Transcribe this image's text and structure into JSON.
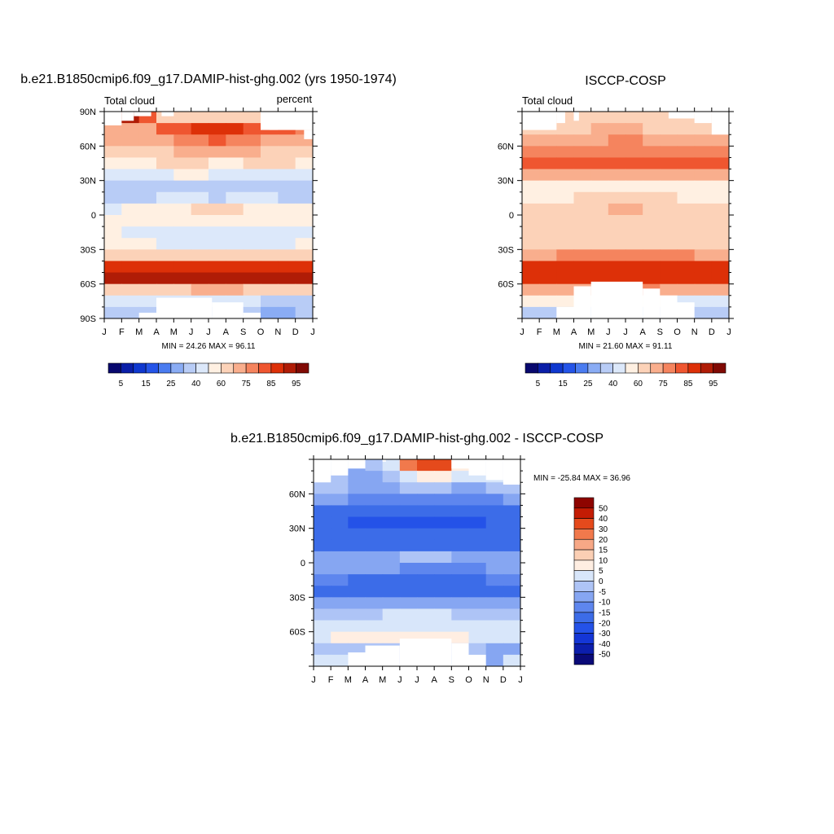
{
  "panels": {
    "model": {
      "title": "b.e21.B1850cmip6.f09_g17.DAMIP-hist-ghg.002 (yrs 1950-1974)",
      "left_label": "Total cloud",
      "right_label": "percent",
      "stats": "MIN =  24.26 MAX =  96.11"
    },
    "obs": {
      "title": "ISCCP-COSP",
      "left_label": "Total cloud",
      "stats": "MIN =  21.60 MAX =  91.11"
    },
    "diff": {
      "title": "b.e21.B1850cmip6.f09_g17.DAMIP-hist-ghg.002 - ISCCP-COSP",
      "stats": "MIN = -25.84 MAX =  36.96"
    }
  },
  "colors": {
    "abs_palette": [
      "#08086e",
      "#0a1ea8",
      "#0f38cf",
      "#2454e8",
      "#4a7cf0",
      "#8aacf4",
      "#b8ccf6",
      "#dce8fa",
      "#fff0e2",
      "#fcd2b8",
      "#f9ae8d",
      "#f5845e",
      "#ef5630",
      "#dd3008",
      "#b01c06",
      "#800a04"
    ],
    "diff_palette": [
      "#0a0a78",
      "#0c1eac",
      "#1436d6",
      "#2452e8",
      "#3c6ce8",
      "#5e86ee",
      "#86a6f2",
      "#aec4f6",
      "#d8e6fa",
      "#ffeee2",
      "#fbcfb4",
      "#f7a886",
      "#f1794c",
      "#e54a1c",
      "#c41c04",
      "#8e0400"
    ]
  },
  "chart_data": [
    {
      "type": "heatmap",
      "title": "b.e21.B1850cmip6.f09_g17.DAMIP-hist-ghg.002 (yrs 1950-1974)",
      "x_ticklabels": [
        "J",
        "F",
        "M",
        "A",
        "M",
        "J",
        "J",
        "A",
        "S",
        "O",
        "N",
        "D",
        "J"
      ],
      "y_ticklabels": [
        "90N",
        "60N",
        "30N",
        "0",
        "30S",
        "60S",
        "90S"
      ],
      "y_range": [
        -90,
        90
      ],
      "colorbar_ticklabels": [
        "5",
        "15",
        "25",
        "40",
        "60",
        "75",
        "85",
        "95"
      ],
      "colorbar_levels": [
        5,
        10,
        15,
        20,
        25,
        30,
        40,
        50,
        60,
        70,
        75,
        80,
        85,
        90,
        95
      ],
      "colorbar_placement": "bottom",
      "min": 24.26,
      "max": 96.11,
      "units": "percent",
      "latitudes": [
        85,
        75,
        65,
        55,
        45,
        35,
        25,
        15,
        5,
        -5,
        -15,
        -25,
        -35,
        -45,
        -55,
        -65,
        -75,
        -85
      ],
      "values": [
        [
          92,
          90,
          84,
          64,
          60,
          60,
          60,
          60,
          60,
          60,
          60,
          60
        ],
        [
          72,
          72,
          74,
          80,
          84,
          86,
          88,
          86,
          84,
          80,
          80,
          76
        ],
        [
          70,
          70,
          72,
          74,
          76,
          78,
          80,
          78,
          76,
          74,
          74,
          72
        ],
        [
          65,
          65,
          66,
          68,
          70,
          72,
          72,
          70,
          70,
          68,
          66,
          64
        ],
        [
          58,
          58,
          58,
          60,
          62,
          60,
          58,
          58,
          60,
          60,
          60,
          58
        ],
        [
          44,
          44,
          46,
          48,
          50,
          50,
          48,
          48,
          46,
          46,
          44,
          44
        ],
        [
          34,
          32,
          34,
          36,
          38,
          36,
          34,
          34,
          36,
          36,
          36,
          34
        ],
        [
          34,
          34,
          38,
          40,
          42,
          40,
          38,
          40,
          42,
          40,
          38,
          36
        ],
        [
          48,
          50,
          52,
          54,
          56,
          60,
          62,
          62,
          58,
          56,
          52,
          50
        ],
        [
          58,
          58,
          56,
          54,
          54,
          50,
          50,
          50,
          52,
          54,
          56,
          58
        ],
        [
          50,
          48,
          46,
          44,
          42,
          40,
          40,
          40,
          42,
          44,
          46,
          48
        ],
        [
          50,
          50,
          50,
          48,
          46,
          44,
          44,
          44,
          46,
          48,
          48,
          50
        ],
        [
          62,
          62,
          62,
          64,
          64,
          66,
          66,
          64,
          64,
          62,
          62,
          62
        ],
        [
          86,
          86,
          86,
          88,
          88,
          88,
          88,
          88,
          88,
          88,
          86,
          86
        ],
        [
          90,
          90,
          90,
          92,
          92,
          93,
          93,
          92,
          92,
          90,
          90,
          90
        ],
        [
          62,
          64,
          66,
          66,
          68,
          70,
          70,
          70,
          68,
          66,
          62,
          62
        ],
        [
          40,
          40,
          42,
          44,
          44,
          42,
          42,
          42,
          40,
          38,
          34,
          32
        ],
        [
          38,
          36,
          34,
          34,
          34,
          34,
          34,
          34,
          30,
          28,
          26,
          32
        ]
      ],
      "missing_note": "white areas are missing data"
    },
    {
      "type": "heatmap",
      "title": "ISCCP-COSP",
      "x_ticklabels": [
        "J",
        "F",
        "M",
        "A",
        "M",
        "J",
        "J",
        "A",
        "S",
        "O",
        "N",
        "D",
        "J"
      ],
      "y_ticklabels": [
        "60N",
        "30N",
        "0",
        "30S",
        "60S"
      ],
      "y_range": [
        -90,
        90
      ],
      "colorbar_ticklabels": [
        "5",
        "15",
        "25",
        "40",
        "60",
        "75",
        "85",
        "95"
      ],
      "colorbar_levels": [
        5,
        10,
        15,
        20,
        25,
        30,
        40,
        50,
        60,
        70,
        75,
        80,
        85,
        90,
        95
      ],
      "colorbar_placement": "bottom",
      "min": 21.6,
      "max": 91.11,
      "latitudes": [
        85,
        75,
        65,
        55,
        45,
        35,
        25,
        15,
        5,
        -5,
        -15,
        -25,
        -35,
        -45,
        -55,
        -65,
        -75,
        -85
      ],
      "values": [
        [
          60,
          60,
          60,
          60,
          60,
          60,
          60,
          60,
          60,
          60,
          60,
          60
        ],
        [
          66,
          66,
          66,
          68,
          70,
          70,
          70,
          68,
          66,
          64,
          64,
          66
        ],
        [
          72,
          72,
          72,
          74,
          74,
          76,
          76,
          74,
          72,
          70,
          70,
          72
        ],
        [
          76,
          76,
          76,
          76,
          78,
          78,
          78,
          76,
          76,
          76,
          76,
          76
        ],
        [
          80,
          80,
          80,
          80,
          80,
          80,
          80,
          80,
          80,
          80,
          80,
          80
        ],
        [
          72,
          72,
          72,
          72,
          72,
          74,
          74,
          72,
          72,
          72,
          72,
          72
        ],
        [
          52,
          52,
          54,
          56,
          58,
          58,
          58,
          56,
          56,
          54,
          52,
          52
        ],
        [
          56,
          56,
          58,
          60,
          60,
          62,
          62,
          60,
          60,
          58,
          58,
          56
        ],
        [
          64,
          64,
          66,
          66,
          68,
          70,
          70,
          68,
          66,
          66,
          64,
          64
        ],
        [
          62,
          62,
          62,
          64,
          64,
          66,
          66,
          64,
          64,
          62,
          62,
          62
        ],
        [
          64,
          64,
          64,
          64,
          64,
          64,
          64,
          64,
          64,
          64,
          64,
          64
        ],
        [
          66,
          66,
          66,
          66,
          66,
          68,
          68,
          66,
          66,
          66,
          66,
          66
        ],
        [
          74,
          74,
          76,
          76,
          78,
          78,
          78,
          76,
          76,
          76,
          74,
          74
        ],
        [
          86,
          86,
          86,
          86,
          86,
          86,
          86,
          86,
          86,
          86,
          86,
          86
        ],
        [
          88,
          88,
          88,
          88,
          88,
          88,
          88,
          88,
          88,
          88,
          88,
          88
        ],
        [
          72,
          72,
          74,
          74,
          76,
          76,
          76,
          76,
          74,
          74,
          72,
          72
        ],
        [
          50,
          50,
          50,
          52,
          52,
          52,
          52,
          52,
          50,
          48,
          48,
          48
        ],
        [
          36,
          36,
          36,
          36,
          36,
          36,
          36,
          36,
          36,
          34,
          30,
          30
        ]
      ]
    },
    {
      "type": "heatmap",
      "title": "b.e21.B1850cmip6.f09_g17.DAMIP-hist-ghg.002 - ISCCP-COSP",
      "x_ticklabels": [
        "J",
        "F",
        "M",
        "A",
        "M",
        "J",
        "J",
        "A",
        "S",
        "O",
        "N",
        "D",
        "J"
      ],
      "y_ticklabels": [
        "60N",
        "30N",
        "0",
        "30S",
        "60S"
      ],
      "y_range": [
        -90,
        90
      ],
      "colorbar_ticklabels": [
        "50",
        "40",
        "30",
        "20",
        "15",
        "10",
        "5",
        "0",
        "-5",
        "-10",
        "-15",
        "-20",
        "-30",
        "-40",
        "-50"
      ],
      "colorbar_levels": [
        -50,
        -40,
        -30,
        -20,
        -15,
        -10,
        -5,
        0,
        5,
        10,
        15,
        20,
        30,
        40,
        50
      ],
      "colorbar_placement": "right",
      "min": -25.84,
      "max": 36.96,
      "latitudes": [
        85,
        75,
        65,
        55,
        45,
        35,
        25,
        15,
        5,
        -5,
        -15,
        -25,
        -35,
        -45,
        -55,
        -65,
        -75,
        -85
      ],
      "values": [
        [
          0,
          0,
          -6,
          -4,
          2,
          26,
          32,
          30,
          8,
          0,
          0,
          0
        ],
        [
          0,
          -2,
          -6,
          -8,
          -2,
          4,
          8,
          6,
          2,
          0,
          2,
          4
        ],
        [
          -2,
          -4,
          -6,
          -8,
          -6,
          -4,
          -2,
          -4,
          -6,
          -6,
          -4,
          -2
        ],
        [
          -10,
          -10,
          -12,
          -14,
          -14,
          -12,
          -12,
          -12,
          -12,
          -12,
          -12,
          -10
        ],
        [
          -16,
          -16,
          -18,
          -18,
          -18,
          -18,
          -18,
          -18,
          -18,
          -18,
          -18,
          -16
        ],
        [
          -20,
          -20,
          -22,
          -22,
          -22,
          -22,
          -22,
          -22,
          -22,
          -22,
          -20,
          -20
        ],
        [
          -18,
          -18,
          -20,
          -20,
          -20,
          -20,
          -18,
          -18,
          -18,
          -18,
          -18,
          -18
        ],
        [
          -20,
          -20,
          -20,
          -20,
          -18,
          -18,
          -18,
          -18,
          -18,
          -18,
          -18,
          -20
        ],
        [
          -10,
          -10,
          -8,
          -6,
          -6,
          -4,
          -4,
          -4,
          -6,
          -8,
          -10,
          -10
        ],
        [
          -8,
          -8,
          -8,
          -10,
          -10,
          -12,
          -12,
          -12,
          -12,
          -12,
          -10,
          -8
        ],
        [
          -12,
          -14,
          -16,
          -16,
          -16,
          -16,
          -16,
          -16,
          -16,
          -16,
          -14,
          -12
        ],
        [
          -18,
          -18,
          -18,
          -20,
          -20,
          -20,
          -20,
          -20,
          -20,
          -20,
          -18,
          -18
        ],
        [
          -10,
          -10,
          -10,
          -10,
          -8,
          -8,
          -8,
          -8,
          -8,
          -10,
          -10,
          -10
        ],
        [
          -4,
          -4,
          -2,
          -2,
          0,
          0,
          0,
          0,
          -2,
          -2,
          -4,
          -4
        ],
        [
          2,
          2,
          2,
          4,
          4,
          4,
          4,
          4,
          4,
          2,
          2,
          2
        ],
        [
          4,
          6,
          6,
          6,
          6,
          8,
          8,
          8,
          6,
          4,
          2,
          2
        ],
        [
          -4,
          -4,
          -4,
          -4,
          -4,
          -4,
          -4,
          -4,
          -4,
          -4,
          -6,
          -8
        ],
        [
          2,
          0,
          -2,
          -2,
          -2,
          -2,
          -2,
          -2,
          -6,
          -6,
          -6,
          0
        ]
      ]
    }
  ]
}
